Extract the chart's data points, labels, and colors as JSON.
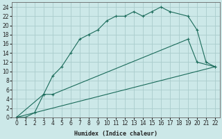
{
  "background_color": "#cce8e8",
  "grid_color": "#aacccc",
  "line_color": "#1a6b5a",
  "xlabel": "Humidex (Indice chaleur)",
  "xlim": [
    -0.5,
    22.5
  ],
  "ylim": [
    0,
    25
  ],
  "xticks": [
    0,
    1,
    2,
    3,
    4,
    5,
    6,
    7,
    8,
    9,
    10,
    11,
    12,
    13,
    14,
    15,
    16,
    17,
    18,
    19,
    20,
    21,
    22
  ],
  "yticks": [
    0,
    2,
    4,
    6,
    8,
    10,
    12,
    14,
    16,
    18,
    20,
    22,
    24
  ],
  "line1_x": [
    0,
    1,
    2,
    3,
    4,
    5,
    6,
    7,
    8,
    9,
    10,
    11,
    12,
    13,
    14,
    15,
    16,
    17,
    19,
    20,
    21,
    22
  ],
  "line1_y": [
    0,
    0,
    1,
    5,
    9,
    11,
    14,
    17,
    18,
    19,
    21,
    22,
    22,
    23,
    22,
    23,
    24,
    23,
    22,
    19,
    12,
    11
  ],
  "line2_x": [
    0,
    3,
    4,
    19,
    20,
    22
  ],
  "line2_y": [
    0,
    5,
    5,
    17,
    12,
    11
  ],
  "line3_x": [
    0,
    4,
    22
  ],
  "line3_y": [
    0,
    2,
    11
  ]
}
